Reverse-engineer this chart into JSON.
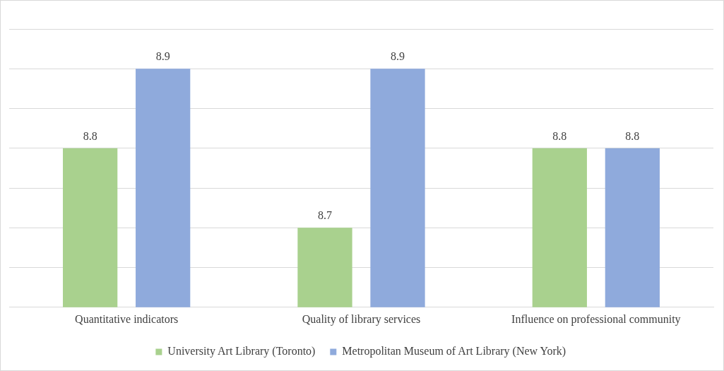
{
  "chart_data": {
    "type": "bar",
    "categories": [
      "Quantitative indicators",
      "Quality of library services",
      "Influence on professional community"
    ],
    "series": [
      {
        "name": "University Art Library (Toronto)",
        "color": "#a9d18e",
        "values": [
          8.8,
          8.7,
          8.8
        ]
      },
      {
        "name": "Metropolitan Museum of Art Library (New York)",
        "color": "#8faadc",
        "values": [
          8.9,
          8.9,
          8.8
        ]
      }
    ],
    "ylim": [
      8.6,
      8.95
    ],
    "yticks": [
      {
        "value": 8.6,
        "label": null
      },
      {
        "value": 8.65,
        "label": null
      },
      {
        "value": 8.7,
        "label": null
      },
      {
        "value": 8.75,
        "label": null
      },
      {
        "value": 8.8,
        "label": null
      },
      {
        "value": 8.85,
        "label": null
      },
      {
        "value": 8.9,
        "label": null
      },
      {
        "value": 8.95,
        "label": null
      }
    ],
    "tick_labels": "x",
    "grid": "y",
    "legend": "bottom",
    "data_labels": true
  }
}
